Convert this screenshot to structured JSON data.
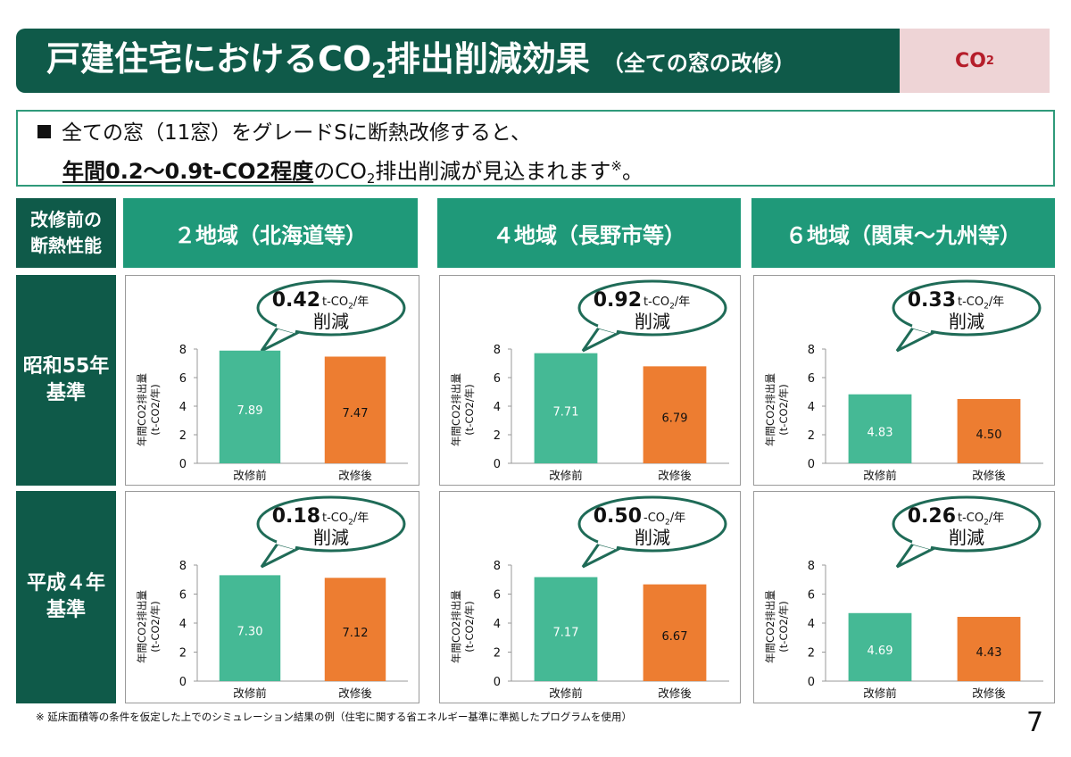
{
  "title": {
    "main": "戸建住宅におけるCO",
    "main_sub": "2",
    "main_rest": "排出削減効果",
    "paren": "（全ての窓の改修）"
  },
  "badge": {
    "text": "CO",
    "sub": "2"
  },
  "summary": {
    "line1": "全ての窓（11窓）をグレードSに断熱改修すると、",
    "line2_highlight": "年間0.2〜0.9t-CO2程度",
    "line2_a": "のCO",
    "line2_sub": "2",
    "line2_b": "排出削減が見込まれます",
    "line2_sup": "※",
    "line2_end": "。"
  },
  "headers": {
    "corner_line1": "改修前の",
    "corner_line2": "断熱性能",
    "cols": [
      "２地域（北海道等）",
      "４地域（長野市等）",
      "６地域（関東〜九州等）"
    ],
    "rows": [
      {
        "line1": "昭和55年",
        "line2": "基準"
      },
      {
        "line1": "平成４年",
        "line2": "基準"
      }
    ]
  },
  "colors": {
    "before": "#45b995",
    "after": "#ed7d31",
    "dark": "#0f5a49",
    "header": "#1f9979"
  },
  "chart_data": [
    {
      "type": "bar",
      "region": "２地域（北海道等）",
      "standard": "昭和55年基準",
      "categories": [
        "改修前",
        "改修後"
      ],
      "values": [
        7.89,
        7.47
      ],
      "value_labels": [
        "7.89",
        "7.47"
      ],
      "ylim": [
        0,
        8
      ],
      "yticks": [
        "0",
        "2",
        "4",
        "6",
        "8"
      ],
      "ylabel_1": "年間CO2排出量",
      "ylabel_2": "(t-CO2/年)",
      "callout_value": "0.42",
      "callout_unit": "t-CO2/年",
      "callout_text": "削減"
    },
    {
      "type": "bar",
      "region": "４地域（長野市等）",
      "standard": "昭和55年基準",
      "categories": [
        "改修前",
        "改修後"
      ],
      "values": [
        7.71,
        6.79
      ],
      "value_labels": [
        "7.71",
        "6.79"
      ],
      "ylim": [
        0,
        8
      ],
      "yticks": [
        "0",
        "2",
        "4",
        "6",
        "8"
      ],
      "ylabel_1": "年間CO2排出量",
      "ylabel_2": "(t-CO2/年)",
      "callout_value": "0.92",
      "callout_unit": "t-CO2/年",
      "callout_text": "削減"
    },
    {
      "type": "bar",
      "region": "６地域（関東〜九州等）",
      "standard": "昭和55年基準",
      "categories": [
        "改修前",
        "改修後"
      ],
      "values": [
        4.83,
        4.5
      ],
      "value_labels": [
        "4.83",
        "4.50"
      ],
      "ylim": [
        0,
        8
      ],
      "yticks": [
        "0",
        "2",
        "4",
        "6",
        "8"
      ],
      "ylabel_1": "年間CO2排出量",
      "ylabel_2": "(t-CO2/年)",
      "callout_value": "0.33",
      "callout_unit": "t-CO2/年",
      "callout_text": "削減"
    },
    {
      "type": "bar",
      "region": "２地域（北海道等）",
      "standard": "平成４年基準",
      "categories": [
        "改修前",
        "改修後"
      ],
      "values": [
        7.3,
        7.12
      ],
      "value_labels": [
        "7.30",
        "7.12"
      ],
      "ylim": [
        0,
        8
      ],
      "yticks": [
        "0",
        "2",
        "4",
        "6",
        "8"
      ],
      "ylabel_1": "年間CO2排出量",
      "ylabel_2": "(t-CO2/年)",
      "callout_value": "0.18",
      "callout_unit": "t-CO2/年",
      "callout_text": "削減"
    },
    {
      "type": "bar",
      "region": "４地域（長野市等）",
      "standard": "平成４年基準",
      "categories": [
        "改修前",
        "改修後"
      ],
      "values": [
        7.17,
        6.67
      ],
      "value_labels": [
        "7.17",
        "6.67"
      ],
      "ylim": [
        0,
        8
      ],
      "yticks": [
        "0",
        "2",
        "4",
        "6",
        "8"
      ],
      "ylabel_1": "年間CO2排出量",
      "ylabel_2": "(t-CO2/年)",
      "callout_value": "0.50",
      "callout_unit": "-CO2/年",
      "callout_text": "削減"
    },
    {
      "type": "bar",
      "region": "６地域（関東〜九州等）",
      "standard": "平成４年基準",
      "categories": [
        "改修前",
        "改修後"
      ],
      "values": [
        4.69,
        4.43
      ],
      "value_labels": [
        "4.69",
        "4.43"
      ],
      "ylim": [
        0,
        8
      ],
      "yticks": [
        "0",
        "2",
        "4",
        "6",
        "8"
      ],
      "ylabel_1": "年間CO2排出量",
      "ylabel_2": "(t-CO2/年)",
      "callout_value": "0.26",
      "callout_unit": "t-CO2/年",
      "callout_text": "削減"
    }
  ],
  "footnote": "※ 延床面積等の条件を仮定した上でのシミュレーション結果の例（住宅に関する省エネルギー基準に準拠したプログラムを使用）",
  "page_number": "7"
}
